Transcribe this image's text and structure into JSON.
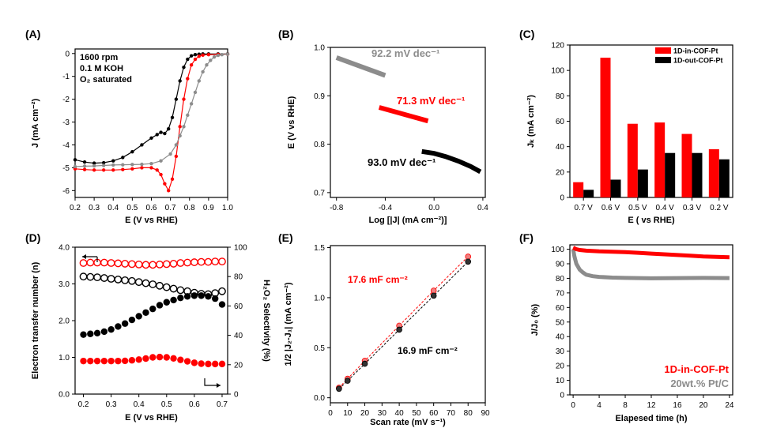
{
  "chart_data": [
    {
      "id": "A",
      "type": "line",
      "panel_label": "(A)",
      "xlabel": "E (V vs RHE)",
      "ylabel": "J (mA cm⁻²)",
      "xlim": [
        0.2,
        1.0
      ],
      "ylim": [
        -6.3,
        0.2
      ],
      "xticks": [
        0.2,
        0.3,
        0.4,
        0.5,
        0.6,
        0.7,
        0.8,
        0.9,
        1.0
      ],
      "yticks": [
        0,
        -1,
        -2,
        -3,
        -4,
        -5,
        -6
      ],
      "annotations": [
        "1600 rpm",
        "0.1 M KOH",
        "O₂ saturated"
      ],
      "series": [
        {
          "color": "#000000",
          "x": [
            0.2,
            0.25,
            0.3,
            0.35,
            0.4,
            0.45,
            0.5,
            0.55,
            0.6,
            0.63,
            0.65,
            0.67,
            0.69,
            0.71,
            0.73,
            0.75,
            0.77,
            0.79,
            0.81,
            0.83,
            0.85,
            0.87,
            0.9,
            0.95,
            1.0
          ],
          "y": [
            -4.65,
            -4.75,
            -4.8,
            -4.78,
            -4.7,
            -4.55,
            -4.3,
            -4.0,
            -3.7,
            -3.55,
            -3.45,
            -3.5,
            -3.3,
            -2.8,
            -2.0,
            -1.2,
            -0.6,
            -0.25,
            -0.1,
            -0.05,
            -0.03,
            -0.02,
            -0.02,
            -0.02,
            -0.02
          ]
        },
        {
          "color": "#ff0000",
          "x": [
            0.2,
            0.25,
            0.3,
            0.35,
            0.4,
            0.45,
            0.5,
            0.55,
            0.6,
            0.63,
            0.65,
            0.67,
            0.69,
            0.71,
            0.73,
            0.75,
            0.77,
            0.79,
            0.81,
            0.83,
            0.85,
            0.87,
            0.9,
            0.95,
            1.0
          ],
          "y": [
            -5.05,
            -5.08,
            -5.1,
            -5.1,
            -5.1,
            -5.08,
            -5.05,
            -5.0,
            -5.0,
            -5.1,
            -5.3,
            -5.7,
            -6.0,
            -5.5,
            -4.5,
            -3.2,
            -2.0,
            -1.1,
            -0.5,
            -0.25,
            -0.12,
            -0.07,
            -0.05,
            -0.04,
            -0.03
          ]
        },
        {
          "color": "#8c8c8c",
          "x": [
            0.2,
            0.25,
            0.3,
            0.35,
            0.4,
            0.45,
            0.5,
            0.55,
            0.6,
            0.65,
            0.7,
            0.73,
            0.75,
            0.77,
            0.79,
            0.81,
            0.83,
            0.85,
            0.87,
            0.89,
            0.91,
            0.93,
            0.95,
            0.97,
            1.0
          ],
          "y": [
            -4.95,
            -4.93,
            -4.92,
            -4.9,
            -4.88,
            -4.87,
            -4.86,
            -4.85,
            -4.82,
            -4.7,
            -4.4,
            -4.0,
            -3.6,
            -3.2,
            -2.7,
            -2.2,
            -1.7,
            -1.2,
            -0.8,
            -0.5,
            -0.3,
            -0.15,
            -0.08,
            -0.05,
            -0.03
          ]
        }
      ]
    },
    {
      "id": "B",
      "type": "line",
      "panel_label": "(B)",
      "xlabel": "Log [|J| (mA cm⁻²)]",
      "ylabel": "E (V vs RHE)",
      "xlim": [
        -0.85,
        0.42
      ],
      "ylim": [
        0.69,
        1.0
      ],
      "xticks": [
        -0.8,
        -0.4,
        0.0,
        0.4
      ],
      "yticks": [
        0.7,
        0.8,
        0.9,
        1.0
      ],
      "series": [
        {
          "color": "#8c8c8c",
          "x": [
            -0.8,
            -0.4
          ],
          "y": [
            0.979,
            0.942
          ],
          "label": "92.2 mV dec⁻¹"
        },
        {
          "color": "#ff0000",
          "x": [
            -0.45,
            -0.05
          ],
          "y": [
            0.876,
            0.848
          ],
          "label": "71.3 mV dec⁻¹"
        },
        {
          "color": "#000000",
          "x": [
            -0.1,
            0.0,
            0.1,
            0.2,
            0.3,
            0.38
          ],
          "y": [
            0.785,
            0.781,
            0.774,
            0.765,
            0.754,
            0.743
          ],
          "label": "93.0 mV dec⁻¹"
        }
      ]
    },
    {
      "id": "C",
      "type": "bar",
      "panel_label": "(C)",
      "xlabel": "E ( vs RHE)",
      "ylabel": "Jₖ (mA cm⁻²)",
      "ylim": [
        0,
        120
      ],
      "yticks": [
        0,
        20,
        40,
        60,
        80,
        100,
        120
      ],
      "categories": [
        "0.7 V",
        "0.6 V",
        "0.5 V",
        "0.4 V",
        "0.3 V",
        "0.2 V"
      ],
      "legend_position": "top-right",
      "series": [
        {
          "name": "1D-in-COF-Pt",
          "color": "#ff0000",
          "values": [
            12,
            110,
            58,
            59,
            50,
            38
          ]
        },
        {
          "name": "1D-out-COF-Pt",
          "color": "#000000",
          "values": [
            6,
            14,
            22,
            35,
            35,
            30
          ]
        }
      ]
    },
    {
      "id": "D",
      "type": "scatter",
      "panel_label": "(D)",
      "xlabel": "E (V vs RHE)",
      "ylabel": "Electron transfer number (n)",
      "ylabel_right": "H₂O₂ Selectivity (%)",
      "xlim": [
        0.17,
        0.72
      ],
      "ylim": [
        0,
        4.0
      ],
      "ylim_right": [
        0,
        100
      ],
      "xticks": [
        0.2,
        0.3,
        0.4,
        0.5,
        0.6,
        0.7
      ],
      "yticks": [
        0.0,
        1.0,
        2.0,
        3.0,
        4.0
      ],
      "yticks_right": [
        0,
        20,
        40,
        60,
        80,
        100
      ],
      "series": [
        {
          "color": "#ff0000",
          "style": "open",
          "axis": "left",
          "x": [
            0.2,
            0.225,
            0.25,
            0.275,
            0.3,
            0.325,
            0.35,
            0.375,
            0.4,
            0.425,
            0.45,
            0.475,
            0.5,
            0.525,
            0.55,
            0.575,
            0.6,
            0.625,
            0.65,
            0.675,
            0.7
          ],
          "y": [
            3.57,
            3.58,
            3.58,
            3.58,
            3.57,
            3.56,
            3.55,
            3.54,
            3.53,
            3.52,
            3.52,
            3.53,
            3.54,
            3.55,
            3.57,
            3.58,
            3.59,
            3.6,
            3.6,
            3.61,
            3.61
          ]
        },
        {
          "color": "#000000",
          "style": "open",
          "axis": "left",
          "x": [
            0.2,
            0.225,
            0.25,
            0.275,
            0.3,
            0.325,
            0.35,
            0.375,
            0.4,
            0.425,
            0.45,
            0.475,
            0.5,
            0.525,
            0.55,
            0.575,
            0.6,
            0.625,
            0.65,
            0.675,
            0.7
          ],
          "y": [
            3.2,
            3.19,
            3.18,
            3.16,
            3.14,
            3.12,
            3.1,
            3.08,
            3.05,
            3.02,
            2.99,
            2.95,
            2.91,
            2.87,
            2.83,
            2.8,
            2.76,
            2.73,
            2.72,
            2.75,
            2.8
          ]
        },
        {
          "color": "#000000",
          "style": "filled",
          "axis": "right",
          "x": [
            0.2,
            0.225,
            0.25,
            0.275,
            0.3,
            0.325,
            0.35,
            0.375,
            0.4,
            0.425,
            0.45,
            0.475,
            0.5,
            0.525,
            0.55,
            0.575,
            0.6,
            0.625,
            0.65,
            0.675,
            0.7
          ],
          "y": [
            40.5,
            41,
            41.5,
            42.5,
            44,
            46,
            48,
            50.5,
            53,
            55.5,
            58,
            60.5,
            62.5,
            64,
            65.5,
            66.5,
            67,
            67,
            66.5,
            65,
            61
          ]
        },
        {
          "color": "#ff0000",
          "style": "filled",
          "axis": "right",
          "x": [
            0.2,
            0.225,
            0.25,
            0.275,
            0.3,
            0.325,
            0.35,
            0.375,
            0.4,
            0.425,
            0.45,
            0.475,
            0.5,
            0.525,
            0.55,
            0.575,
            0.6,
            0.625,
            0.65,
            0.675,
            0.7
          ],
          "y": [
            22.5,
            22.5,
            22.5,
            22.5,
            22.5,
            22.5,
            22.6,
            23,
            23.5,
            24.2,
            25,
            25.2,
            25,
            24.3,
            23.3,
            22.3,
            21.3,
            20.7,
            20.5,
            20.5,
            20.5
          ]
        }
      ]
    },
    {
      "id": "E",
      "type": "line",
      "panel_label": "(E)",
      "xlabel": "Scan rate (mV s⁻¹)",
      "ylabel": "1/2 |J₂-J₁| (mA cm⁻²)",
      "xlim": [
        0,
        90
      ],
      "ylim": [
        -0.05,
        1.52
      ],
      "xticks": [
        0,
        10,
        20,
        30,
        40,
        50,
        60,
        70,
        80,
        90
      ],
      "yticks": [
        0.0,
        0.5,
        1.0,
        1.5
      ],
      "series": [
        {
          "color": "#ff0000",
          "x": [
            5,
            10,
            20,
            40,
            60,
            80
          ],
          "y": [
            0.1,
            0.19,
            0.37,
            0.72,
            1.07,
            1.41
          ],
          "label": "17.6 mF cm⁻²"
        },
        {
          "color": "#000000",
          "x": [
            5,
            10,
            20,
            40,
            60,
            80
          ],
          "y": [
            0.09,
            0.17,
            0.34,
            0.68,
            1.02,
            1.36
          ],
          "label": "16.9 mF cm⁻²"
        }
      ]
    },
    {
      "id": "F",
      "type": "line",
      "panel_label": "(F)",
      "xlabel": "Elapesed time (h)",
      "ylabel": "J/J₀ (%)",
      "xlim": [
        -0.5,
        24.5
      ],
      "ylim": [
        0,
        103
      ],
      "xticks": [
        0,
        4,
        8,
        12,
        16,
        20,
        24
      ],
      "yticks": [
        0,
        10,
        20,
        30,
        40,
        50,
        60,
        70,
        80,
        90,
        100
      ],
      "legend_position": "bottom-right",
      "series": [
        {
          "name": "1D-in-COF-Pt",
          "color": "#ff0000",
          "x": [
            0,
            0.5,
            1,
            2,
            4,
            6,
            8,
            10,
            12,
            14,
            16,
            18,
            20,
            22,
            24
          ],
          "y": [
            101,
            100,
            99.5,
            99,
            98.5,
            98.3,
            98,
            97.5,
            97,
            96.5,
            96,
            95.5,
            95,
            94.7,
            94.5
          ]
        },
        {
          "name": "20wt.% Pt/C",
          "color": "#8c8c8c",
          "x": [
            0,
            0.2,
            0.5,
            1,
            1.5,
            2,
            3,
            4,
            6,
            8,
            12,
            16,
            20,
            24
          ],
          "y": [
            100,
            95,
            90,
            86,
            84,
            82.5,
            81.5,
            81,
            80.5,
            80.3,
            80,
            80.2,
            80.3,
            80.2
          ]
        }
      ]
    }
  ]
}
